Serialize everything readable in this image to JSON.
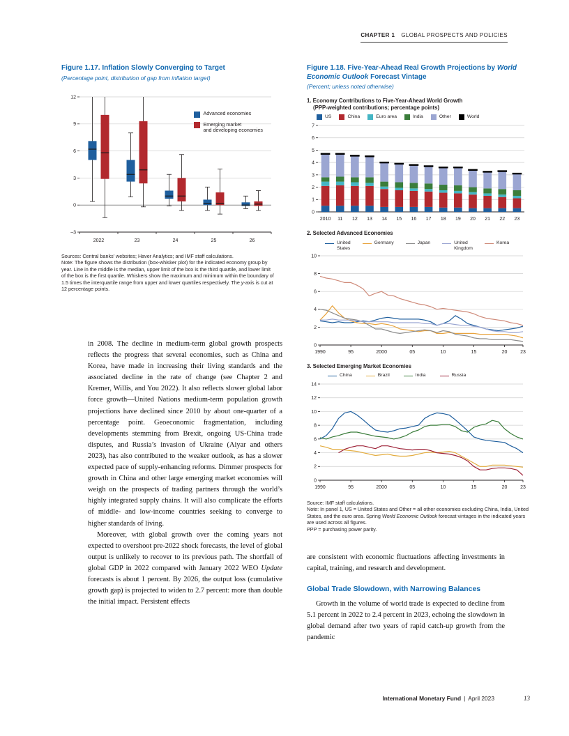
{
  "header": {
    "chapter": "CHAPTER 1",
    "title": "GLOBAL PROSPECTS AND POLICIES"
  },
  "fig117": {
    "title": "Figure 1.17.  Inflation Slowly Converging to Target",
    "subtitle": "(Percentage point, distribution of gap from inflation target)",
    "chart_data": {
      "type": "boxplot",
      "ylim": [
        -3,
        12
      ],
      "yticks": [
        -3,
        0,
        3,
        6,
        9,
        12
      ],
      "categories": [
        "2022",
        "23",
        "24",
        "25",
        "26"
      ],
      "series": [
        {
          "name": "Advanced economies",
          "color": "#1f5f9e",
          "boxes": [
            {
              "lo": 0.4,
              "q1": 5.0,
              "med": 6.2,
              "q3": 7.1,
              "hi": 12
            },
            {
              "lo": 0.9,
              "q1": 2.6,
              "med": 3.4,
              "q3": 5.0,
              "hi": 8.0
            },
            {
              "lo": -0.1,
              "q1": 0.7,
              "med": 1.0,
              "q3": 1.6,
              "hi": 3.4
            },
            {
              "lo": -0.6,
              "q1": 0.0,
              "med": 0.2,
              "q3": 0.6,
              "hi": 2.0
            },
            {
              "lo": -0.4,
              "q1": -0.1,
              "med": 0.0,
              "q3": 0.3,
              "hi": 1.0
            }
          ]
        },
        {
          "name": "Emerging market\nand developing economies",
          "color": "#b2292e",
          "boxes": [
            {
              "lo": -1.4,
              "q1": 2.9,
              "med": 5.8,
              "q3": 10.0,
              "hi": 12
            },
            {
              "lo": -0.2,
              "q1": 2.4,
              "med": 3.9,
              "q3": 9.3,
              "hi": 12
            },
            {
              "lo": -0.6,
              "q1": 0.4,
              "med": 1.0,
              "q3": 3.0,
              "hi": 5.6
            },
            {
              "lo": -1.0,
              "q1": 0.0,
              "med": 0.2,
              "q3": 1.4,
              "hi": 4.0
            },
            {
              "lo": -0.6,
              "q1": -0.1,
              "med": 0.1,
              "q3": 0.4,
              "hi": 1.6
            }
          ]
        }
      ]
    },
    "note_seg1": "Sources: Central banks’ websites; Haver Analytics; and IMF staff calculations.\nNote: The figure shows the distribution (box-whisker plot) for the indicated economy group by year. Line in the middle is the median, upper limit of the box is the third quartile, and lower limit of the box is the first quartile. Whiskers show the maximum and minimum within the boundary of 1.5 times the interquartile range from upper and lower quartiles respectively. The ",
    "note_italic": "y",
    "note_seg2": "-axis is cut at 12 percentage points."
  },
  "fig118": {
    "title_seg1": "Figure 1.18.  Five-Year-Ahead Real Growth Projections by ",
    "title_italic": "World Economic Outlook",
    "title_seg2": " Forecast Vintage",
    "subtitle": "(Percent; unless noted otherwise)",
    "panel1": {
      "title_line1": "1. Economy Contributions to Five-Year-Ahead World Growth",
      "title_line2": "(PPP-weighted contributions; percentage points)",
      "chart_data": {
        "type": "bar",
        "stacked": true,
        "categories": [
          "2010",
          "11",
          "12",
          "13",
          "14",
          "15",
          "16",
          "17",
          "18",
          "19",
          "20",
          "21",
          "22",
          "23"
        ],
        "ylim": [
          0,
          7
        ],
        "yticks": [
          0,
          1,
          2,
          3,
          4,
          5,
          6,
          7
        ],
        "series": [
          {
            "name": "US",
            "color": "#1f5f9e",
            "values": [
              0.5,
              0.5,
              0.5,
              0.5,
              0.4,
              0.4,
              0.4,
              0.4,
              0.35,
              0.35,
              0.3,
              0.3,
              0.3,
              0.3
            ]
          },
          {
            "name": "China",
            "color": "#b2292e",
            "values": [
              1.6,
              1.65,
              1.6,
              1.6,
              1.45,
              1.35,
              1.3,
              1.25,
              1.2,
              1.15,
              1.1,
              1.0,
              0.9,
              0.8
            ]
          },
          {
            "name": "Euro area",
            "color": "#45b5c4",
            "values": [
              0.35,
              0.3,
              0.3,
              0.25,
              0.2,
              0.2,
              0.2,
              0.2,
              0.2,
              0.2,
              0.2,
              0.2,
              0.2,
              0.2
            ]
          },
          {
            "name": "India",
            "color": "#3b7d3b",
            "values": [
              0.35,
              0.4,
              0.4,
              0.45,
              0.4,
              0.45,
              0.45,
              0.45,
              0.45,
              0.45,
              0.4,
              0.4,
              0.45,
              0.45
            ]
          },
          {
            "name": "Other",
            "color": "#9ba6d2",
            "values": [
              1.9,
              1.85,
              1.75,
              1.7,
              1.55,
              1.5,
              1.45,
              1.4,
              1.4,
              1.45,
              1.4,
              1.35,
              1.45,
              1.35
            ]
          }
        ],
        "marker_series": {
          "name": "World",
          "color": "#000000",
          "values": [
            4.7,
            4.7,
            4.55,
            4.5,
            4.0,
            3.9,
            3.8,
            3.7,
            3.6,
            3.6,
            3.4,
            3.25,
            3.3,
            3.1
          ]
        }
      }
    },
    "panel2": {
      "title": "2. Selected Advanced Economies",
      "chart_data": {
        "type": "line",
        "x_start": 1990,
        "xlim": [
          1990,
          2023
        ],
        "xticks": [
          1990,
          1995,
          2000,
          2005,
          2010,
          2015,
          2020,
          2023
        ],
        "xtick_labels": [
          "1990",
          "95",
          "2000",
          "05",
          "10",
          "15",
          "20",
          "23"
        ],
        "ylim": [
          0,
          10
        ],
        "yticks": [
          0,
          2,
          4,
          6,
          8,
          10
        ],
        "series": [
          {
            "name": "United\nStates",
            "color": "#1f5f9e",
            "values": [
              2.7,
              2.6,
              2.5,
              2.6,
              2.5,
              2.5,
              2.6,
              2.7,
              2.6,
              2.8,
              3.0,
              3.1,
              3.0,
              2.9,
              2.9,
              2.9,
              2.9,
              2.8,
              2.6,
              2.2,
              2.4,
              2.7,
              3.3,
              2.9,
              2.4,
              2.2,
              2.0,
              1.8,
              1.7,
              1.6,
              1.7,
              1.8,
              1.9,
              2.1
            ]
          },
          {
            "name": "Germany",
            "color": "#e8a33d",
            "values": [
              2.8,
              3.5,
              4.4,
              3.6,
              3.0,
              2.7,
              2.5,
              2.4,
              2.4,
              2.3,
              2.4,
              2.3,
              2.1,
              1.8,
              1.7,
              1.6,
              1.5,
              1.6,
              1.6,
              1.3,
              1.3,
              1.4,
              1.3,
              1.3,
              1.3,
              1.3,
              1.2,
              1.2,
              1.2,
              1.2,
              1.2,
              1.1,
              1.0,
              0.8
            ]
          },
          {
            "name": "Japan",
            "color": "#8c8c8c",
            "values": [
              4.0,
              3.9,
              3.6,
              3.3,
              3.0,
              2.9,
              2.8,
              2.6,
              2.2,
              1.8,
              1.8,
              1.6,
              1.4,
              1.3,
              1.4,
              1.5,
              1.6,
              1.7,
              1.6,
              1.4,
              1.6,
              1.5,
              1.2,
              1.1,
              1.0,
              0.8,
              0.7,
              0.7,
              0.6,
              0.6,
              0.6,
              0.6,
              0.5,
              0.4
            ]
          },
          {
            "name": "United\nKingdom",
            "color": "#9ba6d2",
            "values": [
              2.8,
              2.8,
              2.9,
              2.8,
              2.8,
              2.8,
              2.7,
              2.6,
              2.6,
              2.6,
              2.6,
              2.6,
              2.5,
              2.5,
              2.5,
              2.5,
              2.5,
              2.4,
              2.4,
              2.2,
              2.4,
              2.4,
              2.3,
              2.2,
              2.2,
              2.1,
              2.0,
              1.8,
              1.6,
              1.5,
              1.5,
              1.4,
              1.4,
              1.5
            ]
          },
          {
            "name": "Korea",
            "color": "#cf8b7a",
            "values": [
              7.7,
              7.5,
              7.4,
              7.2,
              7.0,
              7.0,
              6.7,
              6.3,
              5.5,
              5.8,
              6.0,
              5.6,
              5.5,
              5.2,
              5.0,
              4.8,
              4.6,
              4.5,
              4.3,
              4.0,
              4.1,
              4.0,
              3.9,
              3.8,
              3.7,
              3.5,
              3.2,
              3.0,
              2.9,
              2.8,
              2.7,
              2.5,
              2.4,
              2.2
            ]
          }
        ]
      }
    },
    "panel3": {
      "title": "3. Selected Emerging Market Economies",
      "chart_data": {
        "type": "line",
        "x_start": 1990,
        "xlim": [
          1990,
          2023
        ],
        "xticks": [
          1990,
          1995,
          2000,
          2005,
          2010,
          2015,
          2020,
          2023
        ],
        "xtick_labels": [
          "1990",
          "95",
          "2000",
          "05",
          "10",
          "15",
          "20",
          "23"
        ],
        "ylim": [
          0,
          14
        ],
        "yticks": [
          0,
          2,
          4,
          6,
          8,
          10,
          12,
          14
        ],
        "series": [
          {
            "name": "China",
            "color": "#1f5f9e",
            "values": [
              6.0,
              6.5,
              7.5,
              9.0,
              9.8,
              10.0,
              9.5,
              8.8,
              8.0,
              7.3,
              7.1,
              7.0,
              7.2,
              7.5,
              7.6,
              7.8,
              8.0,
              9.0,
              9.5,
              9.8,
              9.7,
              9.5,
              8.8,
              8.0,
              7.2,
              6.3,
              6.0,
              5.8,
              5.7,
              5.6,
              5.5,
              5.0,
              4.6,
              4.0
            ]
          },
          {
            "name": "Brazil",
            "color": "#e3ac3f",
            "values": [
              5.0,
              4.8,
              4.5,
              4.5,
              4.4,
              4.3,
              4.2,
              4.0,
              3.8,
              3.6,
              3.7,
              3.8,
              3.6,
              3.5,
              3.5,
              3.6,
              3.8,
              4.0,
              4.1,
              4.0,
              4.1,
              4.2,
              4.0,
              3.5,
              3.0,
              2.5,
              2.0,
              2.0,
              2.2,
              2.2,
              2.2,
              2.1,
              2.0,
              1.9
            ]
          },
          {
            "name": "India",
            "color": "#3b7d3b",
            "values": [
              6.2,
              6.0,
              6.3,
              6.5,
              6.8,
              7.0,
              7.0,
              6.8,
              6.6,
              6.4,
              6.3,
              6.2,
              6.0,
              6.2,
              6.5,
              7.0,
              7.3,
              7.8,
              8.0,
              8.0,
              8.1,
              8.1,
              7.8,
              7.2,
              7.0,
              7.7,
              8.0,
              8.2,
              8.7,
              8.5,
              7.5,
              6.8,
              6.3,
              6.0
            ]
          },
          {
            "name": "Russia",
            "color": "#9e2339",
            "values": [
              null,
              null,
              null,
              4.0,
              4.5,
              4.8,
              5.0,
              5.0,
              4.8,
              4.6,
              5.0,
              5.0,
              4.8,
              4.6,
              4.5,
              4.4,
              4.5,
              4.5,
              4.3,
              4.0,
              3.9,
              3.8,
              3.6,
              3.3,
              2.8,
              2.0,
              1.5,
              1.5,
              1.7,
              1.8,
              1.8,
              1.7,
              1.5,
              0.7
            ]
          }
        ]
      }
    },
    "note_seg1": "Source: IMF staff calculations.\nNote: In panel 1, US = United States and Other = all other economies excluding China, India, United States, and the euro area. Spring ",
    "note_italic": "World Economic Outlook",
    "note_seg2": " forecast vintages in the indicated years are used across all figures.\nPPP = purchasing power parity."
  },
  "left_column": {
    "para1": "in 2008. The decline in medium-term global growth prospects reflects the progress that several economies, such as China and Korea, have made in increasing their living standards and the associated decline in the rate of change (see Chapter 2 and Kremer, Willis, and You 2022). It also reflects slower global labor force growth—United Nations medium-term population growth projections have declined since 2010 by about one-quarter of a percentage point. Geoeconomic fragmentation, including developments stemming from Brexit, ongoing US-China trade disputes, and Russia’s invasion of Ukraine (Aiyar and others 2023), has also contributed to the weaker outlook, as has a slower expected pace of supply-enhancing reforms. Dimmer prospects for growth in China and other large emerging market economies will weigh on the prospects of trading partners through the world’s highly integrated supply chains. It will also complicate the efforts of middle- and low-income countries seeking to converge to higher standards of living.",
    "para2_seg1": "Moreover, with global growth over the coming years not expected to overshoot pre-2022 shock forecasts, the level of global output is unlikely to recover to its previous path. The shortfall of global GDP in 2022 compared with January 2022 WEO ",
    "para2_italic": "Update",
    "para2_seg2": " forecasts is about 1 percent. By 2026, the output loss (cumulative growth gap) is projected to widen to 2.7 percent: more than double the initial impact. Persistent effects"
  },
  "right_column": {
    "para1": "are consistent with economic fluctuations affecting investments in capital, training, and research and development.",
    "heading": "Global Trade Slowdown, with Narrowing Balances",
    "para2": "Growth in the volume of world trade is expected to decline from 5.1 percent in 2022 to 2.4 percent in 2023, echoing the slowdown in global demand after two years of rapid catch-up growth from the pandemic"
  },
  "footer": {
    "publisher": "International Monetary Fund",
    "separator": "|",
    "date": "April 2023",
    "page": "13"
  }
}
